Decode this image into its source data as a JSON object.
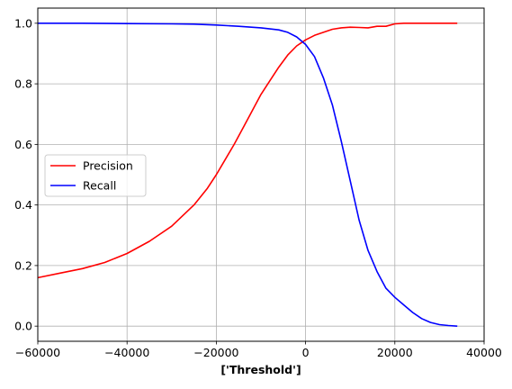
{
  "chart_data": {
    "type": "line",
    "title": "",
    "xlabel": "['Threshold']",
    "ylabel": "",
    "xlim": [
      -60000,
      40000
    ],
    "ylim": [
      -0.05,
      1.05
    ],
    "xticks": [
      -60000,
      -40000,
      -20000,
      0,
      20000,
      40000
    ],
    "xtick_labels": [
      "−60000",
      "−40000",
      "−20000",
      "0",
      "20000",
      "40000"
    ],
    "yticks": [
      0.0,
      0.2,
      0.4,
      0.6,
      0.8,
      1.0
    ],
    "ytick_labels": [
      "0.0",
      "0.2",
      "0.4",
      "0.6",
      "0.8",
      "1.0"
    ],
    "grid": true,
    "legend_position": "center-left",
    "series": [
      {
        "name": "Precision",
        "color": "#ff0000",
        "x": [
          -60000,
          -55000,
          -50000,
          -45000,
          -40000,
          -35000,
          -30000,
          -25000,
          -22000,
          -20000,
          -18000,
          -16000,
          -14000,
          -12000,
          -10000,
          -8000,
          -6000,
          -4000,
          -2000,
          0,
          2000,
          4000,
          6000,
          8000,
          10000,
          12000,
          14000,
          16000,
          18000,
          20000,
          22000,
          26000,
          30000,
          34000
        ],
        "y": [
          0.16,
          0.175,
          0.19,
          0.21,
          0.24,
          0.28,
          0.33,
          0.4,
          0.455,
          0.5,
          0.55,
          0.6,
          0.655,
          0.71,
          0.765,
          0.81,
          0.855,
          0.895,
          0.925,
          0.945,
          0.96,
          0.97,
          0.98,
          0.985,
          0.987,
          0.986,
          0.985,
          0.99,
          0.99,
          0.998,
          1.0,
          1.0,
          1.0,
          1.0
        ]
      },
      {
        "name": "Recall",
        "color": "#0000ff",
        "x": [
          -60000,
          -50000,
          -40000,
          -30000,
          -25000,
          -20000,
          -15000,
          -10000,
          -6000,
          -4000,
          -2000,
          0,
          2000,
          4000,
          6000,
          8000,
          10000,
          12000,
          14000,
          16000,
          18000,
          20000,
          22000,
          24000,
          26000,
          28000,
          30000,
          32000,
          34000
        ],
        "y": [
          1.0,
          1.0,
          0.999,
          0.998,
          0.997,
          0.994,
          0.99,
          0.985,
          0.978,
          0.97,
          0.955,
          0.93,
          0.89,
          0.82,
          0.73,
          0.61,
          0.48,
          0.35,
          0.25,
          0.18,
          0.125,
          0.095,
          0.07,
          0.045,
          0.025,
          0.012,
          0.005,
          0.002,
          0.0
        ]
      }
    ]
  }
}
